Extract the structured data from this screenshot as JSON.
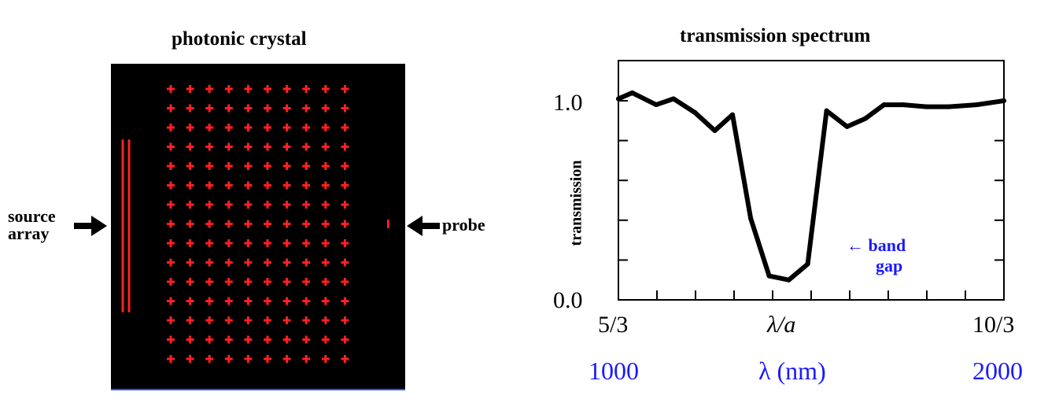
{
  "left_panel": {
    "title": "photonic crystal",
    "source_label_line1": "source",
    "source_label_line2": "array",
    "probe_label": "probe",
    "lattice": {
      "rows": 15,
      "cols": 10,
      "color": "#ff2020"
    },
    "background": "#000000"
  },
  "chart_data": {
    "type": "line",
    "title": "transmission spectrum",
    "ylabel": "transmission",
    "xlabel": "λ/a",
    "x_tick_labels": [
      "5/3",
      "λ/a",
      "10/3"
    ],
    "secondary_x_labels": [
      "1000",
      "λ (nm)",
      "2000"
    ],
    "y_tick_labels": [
      "1.0",
      "0.0"
    ],
    "ylim": [
      0,
      1.25
    ],
    "annotation": {
      "arrow": "←",
      "line1": "band",
      "line2": "gap",
      "color": "#1a1aff"
    },
    "series": [
      {
        "x": [
          0.0,
          0.036,
          0.098,
          0.143,
          0.199,
          0.25,
          0.296,
          0.343,
          0.391,
          0.442,
          0.491,
          0.54,
          0.593,
          0.64,
          0.689,
          0.739,
          0.799,
          0.857,
          0.929,
          1.0
        ],
        "y": [
          1.01,
          1.04,
          0.98,
          1.01,
          0.94,
          0.85,
          0.93,
          0.41,
          0.12,
          0.1,
          0.18,
          0.95,
          0.87,
          0.91,
          0.98,
          0.98,
          0.97,
          0.97,
          0.98,
          1.0
        ]
      }
    ],
    "grid": false
  },
  "colors": {
    "accent_blue": "#1a1aff",
    "crystal_red": "#ff2020",
    "curve": "#000000"
  }
}
